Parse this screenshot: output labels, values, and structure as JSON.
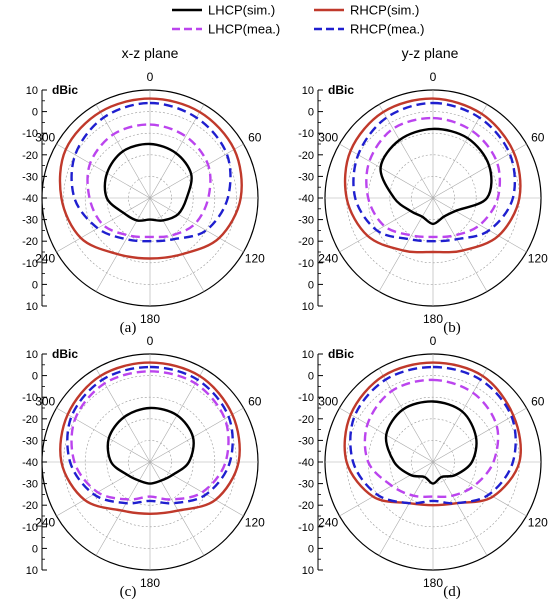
{
  "legend": {
    "entries": [
      {
        "label": "LHCP(sim.)",
        "color": "#000000",
        "dash": "solid"
      },
      {
        "label": "RHCP(sim.)",
        "color": "#c0392b",
        "dash": "solid"
      },
      {
        "label": "LHCP(mea.)",
        "color": "#bb44ee",
        "dash": "dashed"
      },
      {
        "label": "RHCP(mea.)",
        "color": "#1f1fcf",
        "dash": "dashed"
      }
    ]
  },
  "chart_data": [
    {
      "type": "polar-line",
      "title": "x-z plane",
      "caption": "(a)",
      "unit": "dBic",
      "rlim": [
        -40,
        10
      ],
      "r_ticks": [
        "10",
        "0",
        "-10",
        "-20",
        "-30",
        "-40",
        "-30",
        "-20",
        "-10",
        "0",
        "10"
      ],
      "angle_labels": [
        "0",
        "60",
        "120",
        "180",
        "240",
        "300"
      ],
      "theta": [
        0,
        30,
        60,
        90,
        120,
        150,
        180,
        210,
        240,
        270,
        300,
        330
      ],
      "series": [
        {
          "name": "LHCP(sim.)",
          "values": [
            -15,
            -16,
            -18,
            -23,
            -25,
            -28,
            -30,
            -28,
            -26,
            -20,
            -17,
            -15
          ]
        },
        {
          "name": "RHCP(sim.)",
          "values": [
            6,
            6,
            5,
            2,
            -3,
            -10,
            -12,
            -10,
            -3,
            1,
            5,
            6
          ]
        },
        {
          "name": "LHCP(mea.)",
          "values": [
            -6,
            -7,
            -9,
            -13,
            -16,
            -20,
            -22,
            -20,
            -15,
            -12,
            -8,
            -6
          ]
        },
        {
          "name": "RHCP(mea.)",
          "values": [
            4,
            3,
            1,
            -4,
            -10,
            -18,
            -20,
            -18,
            -12,
            -5,
            0,
            3
          ]
        }
      ]
    },
    {
      "type": "polar-line",
      "title": "y-z plane",
      "caption": "(b)",
      "unit": "dBic",
      "rlim": [
        -40,
        10
      ],
      "r_ticks": [
        "10",
        "0",
        "-10",
        "-20",
        "-30",
        "-40",
        "-30",
        "-20",
        "-10",
        "0",
        "10"
      ],
      "angle_labels": [
        "0",
        "60",
        "120",
        "180",
        "240",
        "300"
      ],
      "theta": [
        0,
        30,
        60,
        90,
        120,
        150,
        180,
        210,
        240,
        270,
        300,
        330
      ],
      "series": [
        {
          "name": "LHCP(sim.)",
          "values": [
            -8,
            -8,
            -10,
            -15,
            -28,
            -30,
            -28,
            -30,
            -28,
            -22,
            -12,
            -9
          ]
        },
        {
          "name": "RHCP(sim.)",
          "values": [
            6,
            5,
            3,
            0,
            -5,
            -12,
            -15,
            -12,
            -5,
            0,
            4,
            6
          ]
        },
        {
          "name": "LHCP(mea.)",
          "values": [
            -3,
            -4,
            -6,
            -10,
            -15,
            -20,
            -22,
            -20,
            -14,
            -10,
            -6,
            -3
          ]
        },
        {
          "name": "RHCP(mea.)",
          "values": [
            4,
            3,
            1,
            -3,
            -10,
            -18,
            -20,
            -18,
            -10,
            -4,
            0,
            3
          ]
        }
      ]
    },
    {
      "type": "polar-line",
      "title": "",
      "caption": "(c)",
      "unit": "dBic",
      "rlim": [
        -40,
        10
      ],
      "r_ticks": [
        "10",
        "0",
        "-10",
        "-20",
        "-30",
        "-40",
        "-30",
        "-20",
        "-10",
        "0",
        "10"
      ],
      "angle_labels": [
        "0",
        "60",
        "120",
        "180",
        "240",
        "300"
      ],
      "theta": [
        0,
        30,
        60,
        90,
        120,
        150,
        180,
        210,
        240,
        270,
        300,
        330
      ],
      "series": [
        {
          "name": "LHCP(sim.)",
          "values": [
            -15,
            -15,
            -17,
            -22,
            -28,
            -30,
            -30,
            -30,
            -28,
            -22,
            -18,
            -16
          ]
        },
        {
          "name": "RHCP(sim.)",
          "values": [
            6,
            6,
            4,
            1,
            -5,
            -14,
            -16,
            -14,
            -5,
            1,
            4,
            6
          ]
        },
        {
          "name": "LHCP(mea.)",
          "values": [
            2,
            2,
            0,
            -5,
            -12,
            -20,
            -24,
            -20,
            -12,
            -5,
            0,
            2
          ]
        },
        {
          "name": "RHCP(mea.)",
          "values": [
            4,
            4,
            2,
            -3,
            -10,
            -18,
            -22,
            -18,
            -10,
            -3,
            2,
            4
          ]
        }
      ]
    },
    {
      "type": "polar-line",
      "title": "",
      "caption": "(d)",
      "unit": "dBic",
      "rlim": [
        -40,
        10
      ],
      "r_ticks": [
        "10",
        "0",
        "-10",
        "-20",
        "-30",
        "-40",
        "-30",
        "-20",
        "-10",
        "0",
        "10"
      ],
      "angle_labels": [
        "0",
        "60",
        "120",
        "180",
        "240",
        "300"
      ],
      "theta": [
        0,
        30,
        60,
        90,
        120,
        150,
        180,
        210,
        240,
        270,
        300,
        330
      ],
      "series": [
        {
          "name": "LHCP(sim.)",
          "values": [
            -12,
            -13,
            -17,
            -22,
            -28,
            -32,
            -30,
            -32,
            -28,
            -22,
            -15,
            -12
          ]
        },
        {
          "name": "RHCP(sim.)",
          "values": [
            6,
            6,
            3,
            0,
            -8,
            -18,
            -20,
            -18,
            -8,
            0,
            4,
            6
          ]
        },
        {
          "name": "LHCP(mea.)",
          "values": [
            -2,
            -3,
            -6,
            -12,
            -18,
            -22,
            -24,
            -22,
            -18,
            -10,
            -5,
            -2
          ]
        },
        {
          "name": "RHCP(mea.)",
          "values": [
            4,
            4,
            2,
            -3,
            -10,
            -18,
            -22,
            -18,
            -10,
            -3,
            2,
            4
          ]
        }
      ]
    }
  ]
}
